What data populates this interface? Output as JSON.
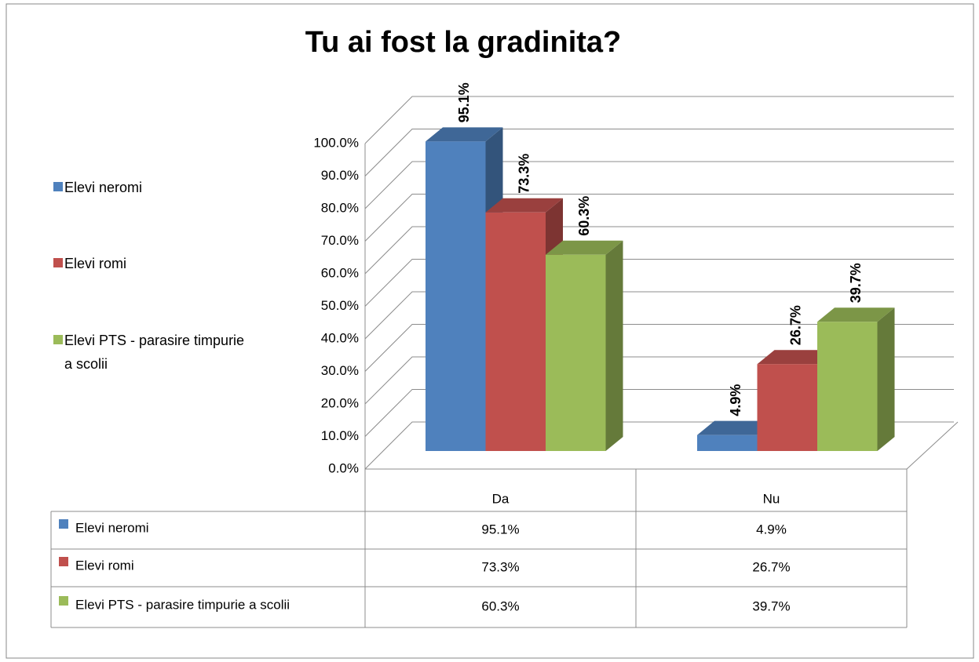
{
  "chart_data": {
    "type": "bar",
    "title": "Tu ai fost la gradinita?",
    "categories": [
      "Da",
      "Nu"
    ],
    "series": [
      {
        "name": "Elevi neromi",
        "color": "#4f81bd",
        "values": [
          95.1,
          4.9
        ],
        "value_labels": [
          "95.1%",
          "4.9%"
        ]
      },
      {
        "name": "Elevi romi",
        "color": "#c0504d",
        "values": [
          73.3,
          26.7
        ],
        "value_labels": [
          "73.3%",
          "26.7%"
        ]
      },
      {
        "name": "Elevi PTS - parasire timpurie a scolii",
        "color": "#9bbb59",
        "values": [
          60.3,
          39.7
        ],
        "value_labels": [
          "60.3%",
          "39.7%"
        ]
      }
    ],
    "ylim": [
      0,
      100
    ],
    "yticks": [
      {
        "value": 0,
        "label": "0.0%"
      },
      {
        "value": 10,
        "label": "10.0%"
      },
      {
        "value": 20,
        "label": "20.0%"
      },
      {
        "value": 30,
        "label": "30.0%"
      },
      {
        "value": 40,
        "label": "40.0%"
      },
      {
        "value": 50,
        "label": "50.0%"
      },
      {
        "value": 60,
        "label": "60.0%"
      },
      {
        "value": 70,
        "label": "70.0%"
      },
      {
        "value": 80,
        "label": "80.0%"
      },
      {
        "value": 90,
        "label": "90.0%"
      },
      {
        "value": 100,
        "label": "100.0%"
      }
    ],
    "grid": true,
    "legend": "left"
  }
}
